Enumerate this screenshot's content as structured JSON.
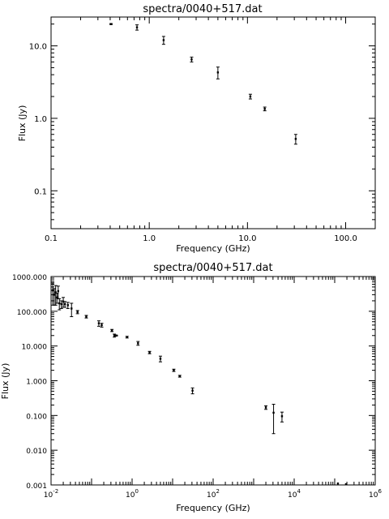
{
  "chart_data": [
    {
      "type": "scatter",
      "title": "spectra/0040+517.dat",
      "xlabel": "Frequency (GHz)",
      "ylabel": "Flux (Jy)",
      "x_scale": "log",
      "y_scale": "log",
      "xlim": [
        0.1,
        200
      ],
      "ylim": [
        0.03,
        25
      ],
      "x_ticks": [
        0.1,
        1,
        10,
        100
      ],
      "x_tick_labels": [
        "0.1",
        "1.0",
        "10.0",
        "100.0"
      ],
      "y_ticks": [
        0.1,
        1,
        10
      ],
      "y_tick_labels": [
        "0.1",
        "1.0",
        "10.0"
      ],
      "grid": false,
      "points": [
        {
          "x": 0.408,
          "y": 20.0,
          "err": 0.3
        },
        {
          "x": 0.75,
          "y": 18.0,
          "err": 1.5
        },
        {
          "x": 1.4,
          "y": 12.0,
          "err": 1.5
        },
        {
          "x": 2.7,
          "y": 6.5,
          "err": 0.5
        },
        {
          "x": 5.0,
          "y": 4.3,
          "err": 0.8
        },
        {
          "x": 10.7,
          "y": 2.0,
          "err": 0.15
        },
        {
          "x": 15.0,
          "y": 1.35,
          "err": 0.08
        },
        {
          "x": 31.0,
          "y": 0.52,
          "err": 0.08
        }
      ]
    },
    {
      "type": "scatter",
      "title": "spectra/0040+517.dat",
      "xlabel": "Frequency (GHz)",
      "ylabel": "Flux (Jy)",
      "x_scale": "log",
      "y_scale": "log",
      "xlim": [
        0.01,
        1000000
      ],
      "ylim": [
        0.001,
        1000
      ],
      "x_ticks": [
        0.01,
        1,
        100,
        10000,
        1000000
      ],
      "x_tick_labels": [
        {
          "base": "10",
          "exp": "-2"
        },
        {
          "base": "10",
          "exp": "0"
        },
        {
          "base": "10",
          "exp": "2"
        },
        {
          "base": "10",
          "exp": "4"
        },
        {
          "base": "10",
          "exp": "6"
        }
      ],
      "y_ticks": [
        0.001,
        0.01,
        0.1,
        1,
        10,
        100,
        1000
      ],
      "y_tick_labels": [
        "0.001",
        "0.010",
        "0.100",
        "1.000",
        "10.000",
        "100.000",
        "1000.000"
      ],
      "grid": false,
      "points": [
        {
          "x": 0.011,
          "y": 400,
          "err": 250
        },
        {
          "x": 0.012,
          "y": 300,
          "err": 150
        },
        {
          "x": 0.013,
          "y": 350,
          "err": 200
        },
        {
          "x": 0.014,
          "y": 250,
          "err": 80
        },
        {
          "x": 0.015,
          "y": 380,
          "err": 150
        },
        {
          "x": 0.016,
          "y": 170,
          "err": 60
        },
        {
          "x": 0.018,
          "y": 160,
          "err": 40
        },
        {
          "x": 0.02,
          "y": 190,
          "err": 60
        },
        {
          "x": 0.022,
          "y": 160,
          "err": 30
        },
        {
          "x": 0.026,
          "y": 150,
          "err": 30
        },
        {
          "x": 0.032,
          "y": 120,
          "err": 50
        },
        {
          "x": 0.045,
          "y": 95,
          "err": 10
        },
        {
          "x": 0.074,
          "y": 70,
          "err": 6
        },
        {
          "x": 0.151,
          "y": 45,
          "err": 8
        },
        {
          "x": 0.178,
          "y": 40,
          "err": 5
        },
        {
          "x": 0.318,
          "y": 28,
          "err": 2
        },
        {
          "x": 0.365,
          "y": 20,
          "err": 2
        },
        {
          "x": 0.408,
          "y": 20,
          "err": 0.5
        },
        {
          "x": 0.75,
          "y": 18,
          "err": 1
        },
        {
          "x": 1.4,
          "y": 12,
          "err": 1.5
        },
        {
          "x": 2.7,
          "y": 6.5,
          "err": 0.5
        },
        {
          "x": 5.0,
          "y": 4.3,
          "err": 0.8
        },
        {
          "x": 10.7,
          "y": 2.0,
          "err": 0.15
        },
        {
          "x": 15.0,
          "y": 1.35,
          "err": 0.08
        },
        {
          "x": 31.0,
          "y": 0.52,
          "err": 0.1
        },
        {
          "x": 2000,
          "y": 0.17,
          "err": 0.02
        },
        {
          "x": 3100,
          "y": 0.12,
          "err": 0.09
        },
        {
          "x": 5000,
          "y": 0.095,
          "err": 0.03
        },
        {
          "x": 120000,
          "y": 0.0011,
          "err": 0
        },
        {
          "x": 190000,
          "y": 0.00105,
          "err": 0
        }
      ]
    }
  ]
}
